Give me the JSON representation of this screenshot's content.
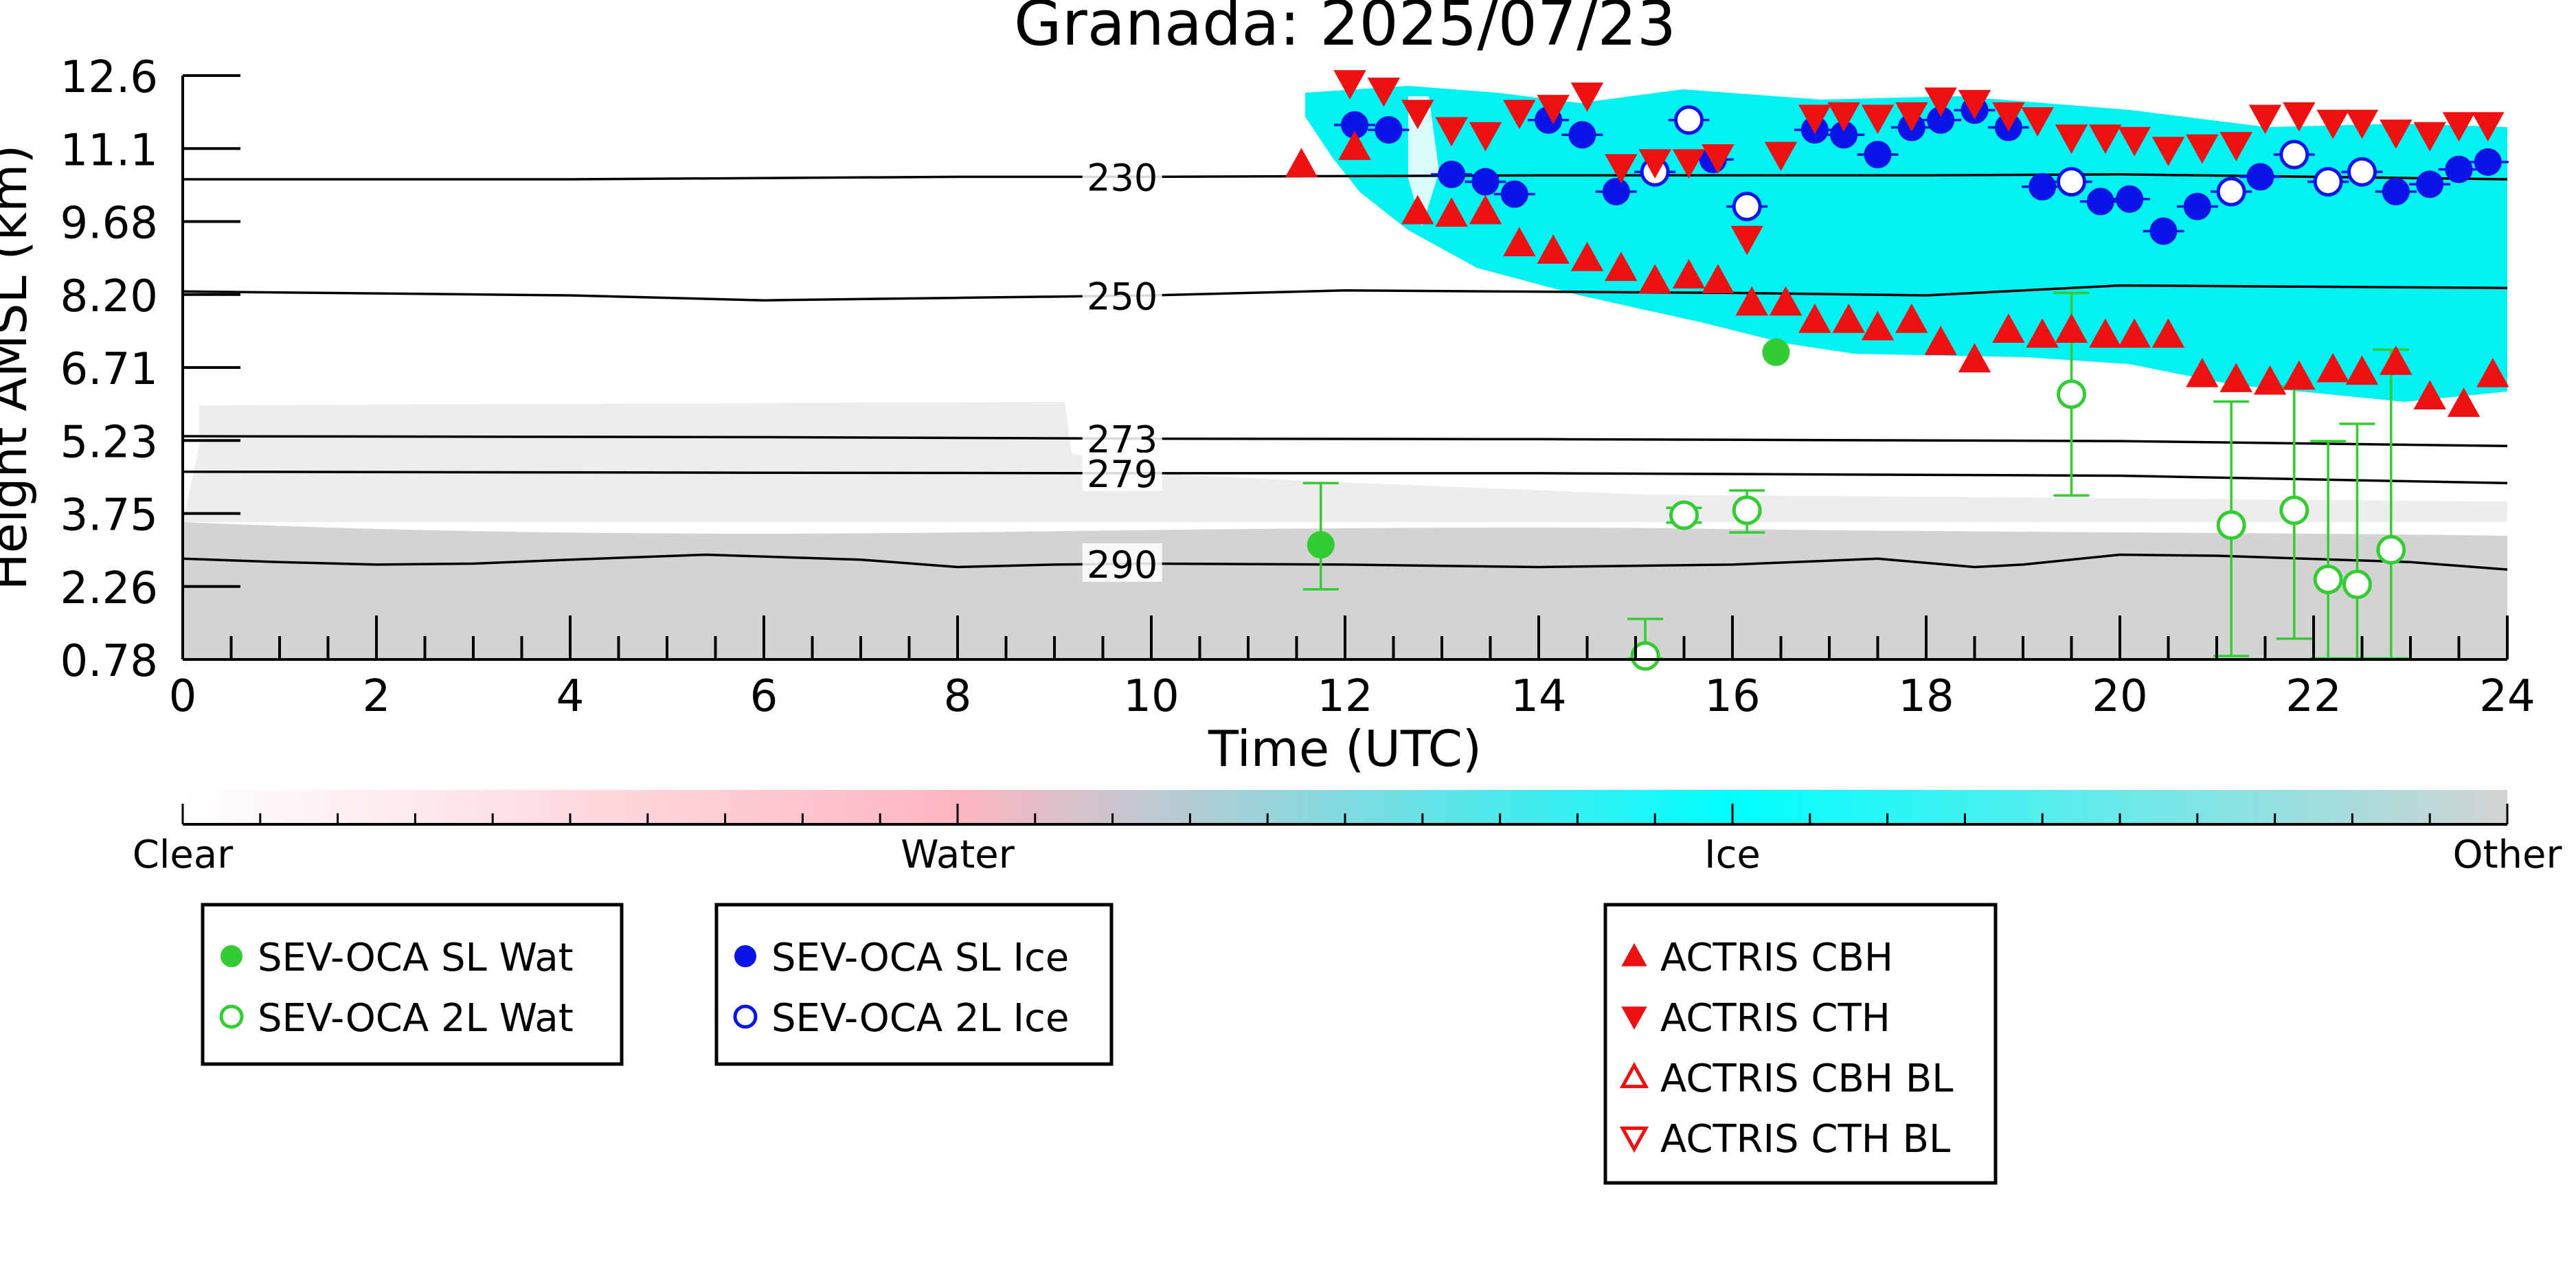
{
  "chart_data": {
    "type": "scatter",
    "title": "Granada: 2025/07/23",
    "xlabel": "Time (UTC)",
    "ylabel": "Height AMSL (km)",
    "xlim": [
      0,
      24
    ],
    "ylim": [
      0.78,
      12.6
    ],
    "x_ticks": [
      "0",
      "2",
      "4",
      "6",
      "8",
      "10",
      "12",
      "14",
      "16",
      "18",
      "20",
      "22",
      "24"
    ],
    "y_ticks": [
      "0.78",
      "2.26",
      "3.75",
      "5.23",
      "6.71",
      "8.20",
      "9.68",
      "11.1",
      "12.6"
    ],
    "isotherms": [
      {
        "label": "230",
        "x": [
          0,
          4,
          8,
          10,
          14,
          18,
          20,
          24
        ],
        "y": [
          10.5,
          10.5,
          10.55,
          10.55,
          10.58,
          10.58,
          10.6,
          10.5
        ]
      },
      {
        "label": "250",
        "x": [
          0,
          4,
          6,
          8,
          10,
          12,
          16,
          18,
          20,
          24
        ],
        "y": [
          8.23,
          8.15,
          8.05,
          8.1,
          8.15,
          8.25,
          8.2,
          8.15,
          8.35,
          8.3
        ]
      },
      {
        "label": "273",
        "x": [
          0,
          6,
          10,
          14,
          20,
          24
        ],
        "y": [
          5.3,
          5.28,
          5.25,
          5.24,
          5.2,
          5.1
        ]
      },
      {
        "label": "279",
        "x": [
          0,
          6,
          10,
          14,
          20,
          24
        ],
        "y": [
          4.58,
          4.56,
          4.55,
          4.55,
          4.5,
          4.35
        ]
      },
      {
        "label": "290",
        "x": [
          0,
          1,
          2,
          3,
          4,
          5.4,
          7,
          8,
          9,
          10,
          12,
          14,
          16,
          17.5,
          18.5,
          19,
          20,
          21,
          23,
          24
        ],
        "y": [
          2.82,
          2.75,
          2.7,
          2.72,
          2.8,
          2.9,
          2.8,
          2.65,
          2.7,
          2.72,
          2.7,
          2.65,
          2.7,
          2.82,
          2.65,
          2.7,
          2.9,
          2.88,
          2.75,
          2.6
        ]
      }
    ],
    "series": [
      {
        "name": "SEV-OCA SL Wat",
        "marker": "circle-filled",
        "color": "#33cc33",
        "points": [
          {
            "x": 11.75,
            "y": 3.1,
            "ylo": 2.2,
            "yhi": 4.35
          },
          {
            "x": 16.45,
            "y": 7.0
          }
        ]
      },
      {
        "name": "SEV-OCA 2L Wat",
        "marker": "circle-open",
        "color": "#33cc33",
        "points": [
          {
            "x": 15.1,
            "y": 0.85,
            "ylo": 0.8,
            "yhi": 1.6
          },
          {
            "x": 15.5,
            "y": 3.7,
            "ylo": 3.55,
            "yhi": 3.85
          },
          {
            "x": 16.15,
            "y": 3.8,
            "ylo": 3.35,
            "yhi": 4.2
          },
          {
            "x": 19.5,
            "y": 6.15,
            "ylo": 4.1,
            "yhi": 8.2
          },
          {
            "x": 21.15,
            "y": 3.5,
            "ylo": 0.85,
            "yhi": 6.0
          },
          {
            "x": 21.8,
            "y": 3.8,
            "ylo": 1.2,
            "yhi": 6.3
          },
          {
            "x": 22.15,
            "y": 2.4,
            "ylo": 0.8,
            "yhi": 5.2
          },
          {
            "x": 22.45,
            "y": 2.3,
            "ylo": 0.8,
            "yhi": 5.55
          },
          {
            "x": 22.8,
            "y": 3.0,
            "ylo": 0.8,
            "yhi": 7.05
          }
        ]
      },
      {
        "name": "SEV-OCA SL Ice",
        "marker": "circle-filled",
        "color": "#0a14e6",
        "points": [
          {
            "x": 12.1,
            "y": 11.6
          },
          {
            "x": 12.45,
            "y": 11.5
          },
          {
            "x": 13.1,
            "y": 10.6
          },
          {
            "x": 13.45,
            "y": 10.45
          },
          {
            "x": 13.75,
            "y": 10.2
          },
          {
            "x": 14.1,
            "y": 11.7
          },
          {
            "x": 14.45,
            "y": 11.4
          },
          {
            "x": 14.8,
            "y": 10.25
          },
          {
            "x": 15.8,
            "y": 10.9
          },
          {
            "x": 16.85,
            "y": 11.5
          },
          {
            "x": 17.15,
            "y": 11.4
          },
          {
            "x": 17.5,
            "y": 11.0
          },
          {
            "x": 17.85,
            "y": 11.55
          },
          {
            "x": 18.15,
            "y": 11.7
          },
          {
            "x": 18.5,
            "y": 11.9
          },
          {
            "x": 18.85,
            "y": 11.55
          },
          {
            "x": 19.2,
            "y": 10.35
          },
          {
            "x": 19.8,
            "y": 10.05
          },
          {
            "x": 20.1,
            "y": 10.1
          },
          {
            "x": 20.45,
            "y": 9.45
          },
          {
            "x": 20.8,
            "y": 9.95
          },
          {
            "x": 21.45,
            "y": 10.55
          },
          {
            "x": 22.85,
            "y": 10.25
          },
          {
            "x": 23.2,
            "y": 10.4
          },
          {
            "x": 23.5,
            "y": 10.7
          },
          {
            "x": 23.8,
            "y": 10.85
          }
        ]
      },
      {
        "name": "SEV-OCA 2L Ice",
        "marker": "circle-open",
        "color": "#0a14e6",
        "points": [
          {
            "x": 15.2,
            "y": 10.65
          },
          {
            "x": 15.55,
            "y": 11.7
          },
          {
            "x": 16.15,
            "y": 9.95
          },
          {
            "x": 19.5,
            "y": 10.45
          },
          {
            "x": 21.15,
            "y": 10.25
          },
          {
            "x": 21.8,
            "y": 11.0
          },
          {
            "x": 22.15,
            "y": 10.45
          },
          {
            "x": 22.5,
            "y": 10.65
          }
        ]
      },
      {
        "name": "ACTRIS CBH",
        "marker": "triangle-up-filled",
        "color": "#ee1111",
        "points": [
          {
            "x": 11.55,
            "y": 10.8
          },
          {
            "x": 12.1,
            "y": 11.15
          },
          {
            "x": 12.75,
            "y": 9.85
          },
          {
            "x": 13.1,
            "y": 9.8
          },
          {
            "x": 13.45,
            "y": 9.85
          },
          {
            "x": 13.8,
            "y": 9.2
          },
          {
            "x": 14.15,
            "y": 9.05
          },
          {
            "x": 14.5,
            "y": 8.9
          },
          {
            "x": 14.85,
            "y": 8.7
          },
          {
            "x": 15.2,
            "y": 8.45
          },
          {
            "x": 15.55,
            "y": 8.55
          },
          {
            "x": 15.85,
            "y": 8.45
          },
          {
            "x": 16.2,
            "y": 8.0
          },
          {
            "x": 16.55,
            "y": 8.0
          },
          {
            "x": 16.85,
            "y": 7.65
          },
          {
            "x": 17.2,
            "y": 7.65
          },
          {
            "x": 17.5,
            "y": 7.5
          },
          {
            "x": 17.85,
            "y": 7.65
          },
          {
            "x": 18.15,
            "y": 7.2
          },
          {
            "x": 18.5,
            "y": 6.85
          },
          {
            "x": 18.85,
            "y": 7.45
          },
          {
            "x": 19.2,
            "y": 7.35
          },
          {
            "x": 19.5,
            "y": 7.45
          },
          {
            "x": 19.85,
            "y": 7.35
          },
          {
            "x": 20.15,
            "y": 7.35
          },
          {
            "x": 20.5,
            "y": 7.35
          },
          {
            "x": 20.85,
            "y": 6.55
          },
          {
            "x": 21.2,
            "y": 6.45
          },
          {
            "x": 21.55,
            "y": 6.4
          },
          {
            "x": 21.85,
            "y": 6.5
          },
          {
            "x": 22.2,
            "y": 6.65
          },
          {
            "x": 22.5,
            "y": 6.6
          },
          {
            "x": 22.85,
            "y": 6.8
          },
          {
            "x": 23.2,
            "y": 6.1
          },
          {
            "x": 23.55,
            "y": 5.95
          },
          {
            "x": 23.85,
            "y": 6.55
          }
        ]
      },
      {
        "name": "ACTRIS CTH",
        "marker": "triangle-down-filled",
        "color": "#ee1111",
        "points": [
          {
            "x": 12.05,
            "y": 12.45
          },
          {
            "x": 12.4,
            "y": 12.3
          },
          {
            "x": 12.75,
            "y": 11.85
          },
          {
            "x": 13.1,
            "y": 11.5
          },
          {
            "x": 13.45,
            "y": 11.4
          },
          {
            "x": 13.8,
            "y": 11.85
          },
          {
            "x": 14.15,
            "y": 11.95
          },
          {
            "x": 14.5,
            "y": 12.2
          },
          {
            "x": 14.85,
            "y": 10.75
          },
          {
            "x": 15.2,
            "y": 10.85
          },
          {
            "x": 15.55,
            "y": 10.85
          },
          {
            "x": 15.85,
            "y": 10.95
          },
          {
            "x": 16.15,
            "y": 9.3
          },
          {
            "x": 16.5,
            "y": 11.0
          },
          {
            "x": 16.85,
            "y": 11.75
          },
          {
            "x": 17.15,
            "y": 11.8
          },
          {
            "x": 17.5,
            "y": 11.75
          },
          {
            "x": 17.85,
            "y": 11.8
          },
          {
            "x": 18.15,
            "y": 12.1
          },
          {
            "x": 18.5,
            "y": 12.05
          },
          {
            "x": 18.85,
            "y": 11.8
          },
          {
            "x": 19.15,
            "y": 11.7
          },
          {
            "x": 19.5,
            "y": 11.35
          },
          {
            "x": 19.85,
            "y": 11.35
          },
          {
            "x": 20.15,
            "y": 11.3
          },
          {
            "x": 20.5,
            "y": 11.1
          },
          {
            "x": 20.85,
            "y": 11.15
          },
          {
            "x": 21.2,
            "y": 11.2
          },
          {
            "x": 21.5,
            "y": 11.75
          },
          {
            "x": 21.85,
            "y": 11.8
          },
          {
            "x": 22.2,
            "y": 11.65
          },
          {
            "x": 22.5,
            "y": 11.65
          },
          {
            "x": 22.85,
            "y": 11.45
          },
          {
            "x": 23.2,
            "y": 11.4
          },
          {
            "x": 23.5,
            "y": 11.6
          },
          {
            "x": 23.8,
            "y": 11.6
          }
        ]
      },
      {
        "name": "ACTRIS CBH BL",
        "marker": "triangle-up-open",
        "color": "#ee1111",
        "points": []
      },
      {
        "name": "ACTRIS CTH BL",
        "marker": "triangle-down-open",
        "color": "#ee1111",
        "points": []
      }
    ],
    "colorbar": {
      "labels": [
        "Clear",
        "Water",
        "Ice",
        "Other"
      ],
      "colors": [
        "#ffffff",
        "#ffb6c1",
        "#00ffff",
        "#d3d3d3"
      ]
    },
    "legend_groups": [
      [
        "SEV-OCA SL Wat",
        "SEV-OCA 2L Wat"
      ],
      [
        "SEV-OCA SL Ice",
        "SEV-OCA 2L Ice"
      ],
      [
        "ACTRIS CBH",
        "ACTRIS CTH",
        "ACTRIS CBH BL",
        "ACTRIS CTH BL"
      ]
    ],
    "colors": {
      "water": "#33cc33",
      "ice": "#0a14e6",
      "actris": "#ee1111",
      "ice_phase": "#00f2f2",
      "other_phase": "#d3d3d3"
    }
  }
}
